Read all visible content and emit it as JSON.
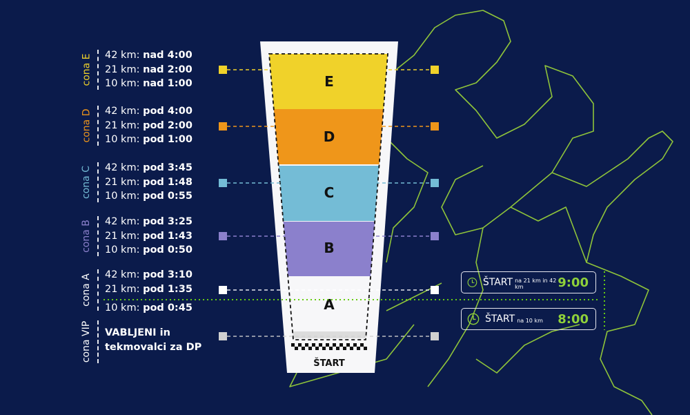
{
  "zones": [
    {
      "label": "cona E",
      "color": "#f0d22a",
      "rows": [
        [
          "42 km: ",
          "nad 4:00"
        ],
        [
          "21 km: ",
          "nad 2:00"
        ],
        [
          "10 km: ",
          "nad 1:00"
        ]
      ],
      "letter": "E"
    },
    {
      "label": "cona D",
      "color": "#ef961a",
      "rows": [
        [
          "42 km: ",
          "pod 4:00"
        ],
        [
          "21 km: ",
          "pod 2:00"
        ],
        [
          "10 km: ",
          "pod 1:00"
        ]
      ],
      "letter": "D"
    },
    {
      "label": "cona C",
      "color": "#74bcd6",
      "rows": [
        [
          "42 km: ",
          "pod 3:45"
        ],
        [
          "21 km: ",
          "pod 1:48"
        ],
        [
          "10 km: ",
          "pod 0:55"
        ]
      ],
      "letter": "C"
    },
    {
      "label": "cona B",
      "color": "#8b80cc",
      "rows": [
        [
          "42 km: ",
          "pod 3:25"
        ],
        [
          "21 km: ",
          "pod 1:43"
        ],
        [
          "10 km: ",
          "pod 0:50"
        ]
      ],
      "letter": "B"
    },
    {
      "label": "cona A",
      "color": "#ffffff",
      "rows": [
        [
          "42 km: ",
          "pod 3:10"
        ],
        [
          "21 km: ",
          "pod 1:35"
        ],
        [
          "10 km: ",
          "pod 0:45"
        ]
      ],
      "letter": "A"
    },
    {
      "label": "cona VIP",
      "color": "#d0d0d0",
      "text": [
        "VABLJENI in",
        "tekmovalci za DP"
      ]
    }
  ],
  "start_label": "ŠTART",
  "starts": [
    {
      "label": "ŠTART",
      "sub": "na 21 km in 42 km",
      "time": "9:00",
      "icon": "clock-icon"
    },
    {
      "label": "ŠTART",
      "sub": "na 10 km",
      "time": "8:00",
      "icon": "clock-icon"
    }
  ],
  "colors": {
    "background": "#0b1b4b",
    "runner": "#8fc43a",
    "start_line": "#66cc11"
  }
}
